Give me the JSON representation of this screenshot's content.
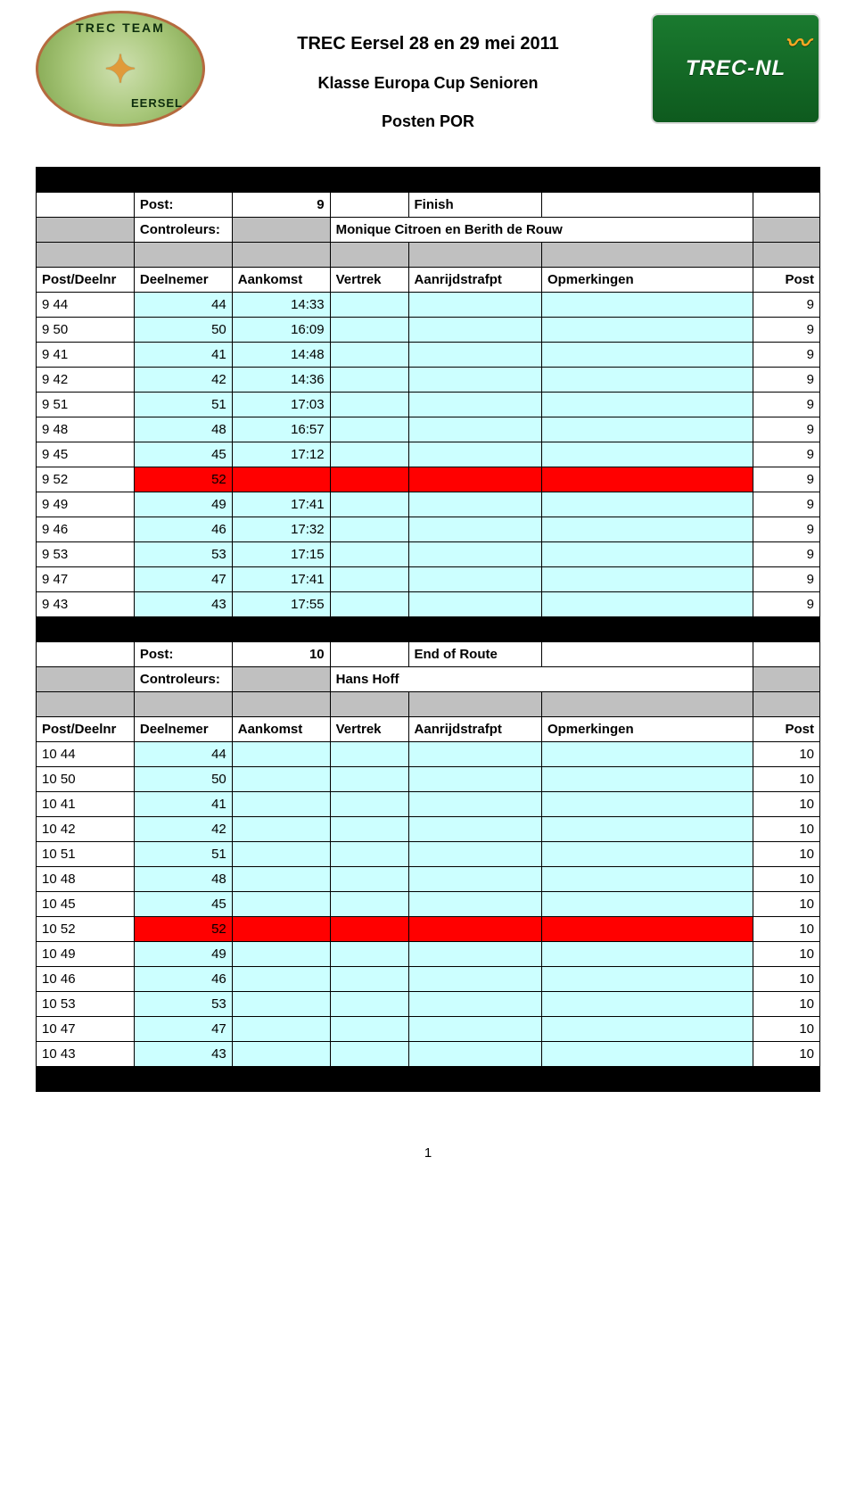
{
  "header": {
    "title1": "TREC Eersel 28 en 29 mei 2011",
    "title2": "Klasse Europa Cup Senioren",
    "title3": "Posten POR",
    "logo_left": {
      "arc_top": "TREC TEAM",
      "arc_bottom": "EERSEL",
      "compass": "✦"
    },
    "logo_right": {
      "brand": "TREC-NL"
    }
  },
  "labels": {
    "post": "Post:",
    "controleurs": "Controleurs:",
    "col_postdeelnr": "Post/Deelnr",
    "col_deelnemer": "Deelnemer",
    "col_aankomst": "Aankomst",
    "col_vertrek": "Vertrek",
    "col_aanrijd": "Aanrijdstrafpt",
    "col_opm": "Opmerkingen",
    "col_post": "Post"
  },
  "section1": {
    "post_no": "9",
    "post_name": "Finish",
    "controleurs": "Monique Citroen en Berith de Rouw",
    "rows": [
      {
        "pd": "9 44",
        "dn": "44",
        "ak": "14:33",
        "post": "9",
        "highlight": false
      },
      {
        "pd": "9 50",
        "dn": "50",
        "ak": "16:09",
        "post": "9",
        "highlight": false
      },
      {
        "pd": "9 41",
        "dn": "41",
        "ak": "14:48",
        "post": "9",
        "highlight": false
      },
      {
        "pd": "9 42",
        "dn": "42",
        "ak": "14:36",
        "post": "9",
        "highlight": false
      },
      {
        "pd": "9 51",
        "dn": "51",
        "ak": "17:03",
        "post": "9",
        "highlight": false
      },
      {
        "pd": "9 48",
        "dn": "48",
        "ak": "16:57",
        "post": "9",
        "highlight": false
      },
      {
        "pd": "9 45",
        "dn": "45",
        "ak": "17:12",
        "post": "9",
        "highlight": false
      },
      {
        "pd": "9 52",
        "dn": "52",
        "ak": "",
        "post": "9",
        "highlight": true
      },
      {
        "pd": "9 49",
        "dn": "49",
        "ak": "17:41",
        "post": "9",
        "highlight": false
      },
      {
        "pd": "9 46",
        "dn": "46",
        "ak": "17:32",
        "post": "9",
        "highlight": false
      },
      {
        "pd": "9 53",
        "dn": "53",
        "ak": "17:15",
        "post": "9",
        "highlight": false
      },
      {
        "pd": "9 47",
        "dn": "47",
        "ak": "17:41",
        "post": "9",
        "highlight": false
      },
      {
        "pd": "9 43",
        "dn": "43",
        "ak": "17:55",
        "post": "9",
        "highlight": false
      }
    ]
  },
  "section2": {
    "post_no": "10",
    "post_name": "End of Route",
    "controleurs": "Hans Hoff",
    "rows": [
      {
        "pd": "10 44",
        "dn": "44",
        "ak": "",
        "post": "10",
        "highlight": false
      },
      {
        "pd": "10 50",
        "dn": "50",
        "ak": "",
        "post": "10",
        "highlight": false
      },
      {
        "pd": "10 41",
        "dn": "41",
        "ak": "",
        "post": "10",
        "highlight": false
      },
      {
        "pd": "10 42",
        "dn": "42",
        "ak": "",
        "post": "10",
        "highlight": false
      },
      {
        "pd": "10 51",
        "dn": "51",
        "ak": "",
        "post": "10",
        "highlight": false
      },
      {
        "pd": "10 48",
        "dn": "48",
        "ak": "",
        "post": "10",
        "highlight": false
      },
      {
        "pd": "10 45",
        "dn": "45",
        "ak": "",
        "post": "10",
        "highlight": false
      },
      {
        "pd": "10 52",
        "dn": "52",
        "ak": "",
        "post": "10",
        "highlight": true
      },
      {
        "pd": "10 49",
        "dn": "49",
        "ak": "",
        "post": "10",
        "highlight": false
      },
      {
        "pd": "10 46",
        "dn": "46",
        "ak": "",
        "post": "10",
        "highlight": false
      },
      {
        "pd": "10 53",
        "dn": "53",
        "ak": "",
        "post": "10",
        "highlight": false
      },
      {
        "pd": "10 47",
        "dn": "47",
        "ak": "",
        "post": "10",
        "highlight": false
      },
      {
        "pd": "10 43",
        "dn": "43",
        "ak": "",
        "post": "10",
        "highlight": false
      }
    ]
  },
  "page_number": "1",
  "colors": {
    "row_normal": "#ccffff",
    "row_highlight": "#ff0000",
    "grey": "#c0c0c0",
    "black": "#000000",
    "border": "#000000"
  }
}
